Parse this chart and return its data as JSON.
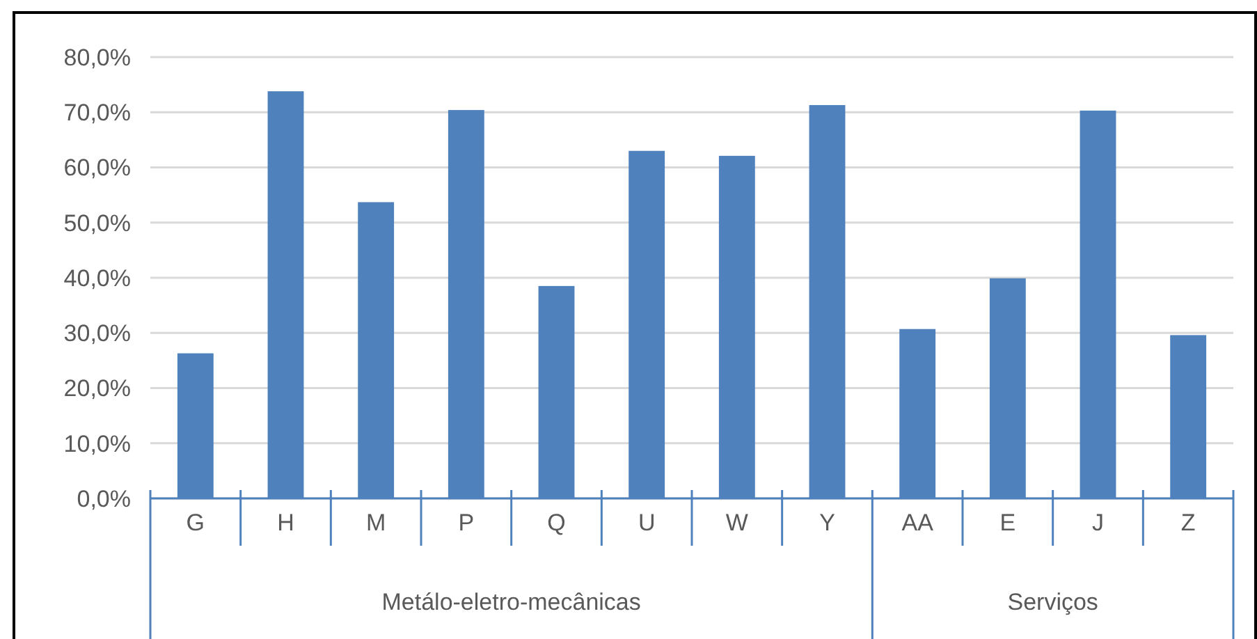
{
  "chart_data": {
    "type": "bar",
    "categories": [
      "G",
      "H",
      "M",
      "P",
      "Q",
      "U",
      "W",
      "Y",
      "AA",
      "E",
      "J",
      "Z"
    ],
    "values": [
      26.3,
      73.8,
      53.7,
      70.4,
      38.5,
      63.0,
      62.1,
      71.3,
      30.7,
      39.9,
      70.3,
      29.6
    ],
    "color": "#4f81bd",
    "ylim": [
      0,
      80
    ],
    "yticks": [
      {
        "value": 0,
        "label": "0,0%"
      },
      {
        "value": 10,
        "label": "10,0%"
      },
      {
        "value": 20,
        "label": "20,0%"
      },
      {
        "value": 30,
        "label": "30,0%"
      },
      {
        "value": 40,
        "label": "40,0%"
      },
      {
        "value": 50,
        "label": "50,0%"
      },
      {
        "value": 60,
        "label": "60,0%"
      },
      {
        "value": 70,
        "label": "70,0%"
      },
      {
        "value": 80,
        "label": "80,0%"
      }
    ],
    "grid": "y",
    "annotations": [
      "Metálo-eletro-mecânicas",
      "Serviços"
    ]
  }
}
